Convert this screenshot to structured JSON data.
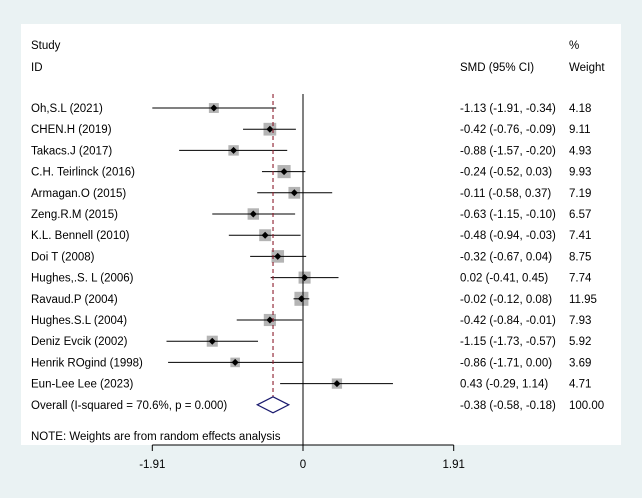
{
  "chart_data": {
    "type": "forest",
    "header": {
      "study_line1": "Study",
      "study_line2": "ID",
      "effect_label": "SMD (95% CI)",
      "weight_line1": "%",
      "weight_line2": "Weight"
    },
    "studies": [
      {
        "name": "Oh,S.L (2021)",
        "smd": -1.13,
        "lower": -1.91,
        "upper": -0.34,
        "ci_text": "-1.13 (-1.91, -0.34)",
        "weight": 4.18,
        "weight_text": "4.18"
      },
      {
        "name": "CHEN.H (2019)",
        "smd": -0.42,
        "lower": -0.76,
        "upper": -0.09,
        "ci_text": "-0.42 (-0.76, -0.09)",
        "weight": 9.11,
        "weight_text": "9.11"
      },
      {
        "name": "Takacs.J (2017)",
        "smd": -0.88,
        "lower": -1.57,
        "upper": -0.2,
        "ci_text": "-0.88 (-1.57, -0.20)",
        "weight": 4.93,
        "weight_text": "4.93"
      },
      {
        "name": "C.H. Teirlinck (2016)",
        "smd": -0.24,
        "lower": -0.52,
        "upper": 0.03,
        "ci_text": "-0.24 (-0.52, 0.03)",
        "weight": 9.93,
        "weight_text": "9.93"
      },
      {
        "name": "Armagan.O (2015)",
        "smd": -0.11,
        "lower": -0.58,
        "upper": 0.37,
        "ci_text": "-0.11 (-0.58, 0.37)",
        "weight": 7.19,
        "weight_text": "7.19"
      },
      {
        "name": "Zeng.R.M (2015)",
        "smd": -0.63,
        "lower": -1.15,
        "upper": -0.1,
        "ci_text": "-0.63 (-1.15, -0.10)",
        "weight": 6.57,
        "weight_text": "6.57"
      },
      {
        "name": "K.L. Bennell (2010)",
        "smd": -0.48,
        "lower": -0.94,
        "upper": -0.03,
        "ci_text": "-0.48 (-0.94, -0.03)",
        "weight": 7.41,
        "weight_text": "7.41"
      },
      {
        "name": "Doi T  (2008)",
        "smd": -0.32,
        "lower": -0.67,
        "upper": 0.04,
        "ci_text": "-0.32 (-0.67, 0.04)",
        "weight": 8.75,
        "weight_text": "8.75"
      },
      {
        "name": "Hughes,.S. L (2006)",
        "smd": 0.02,
        "lower": -0.41,
        "upper": 0.45,
        "ci_text": "0.02 (-0.41, 0.45)",
        "weight": 7.74,
        "weight_text": "7.74"
      },
      {
        "name": "Ravaud.P (2004)",
        "smd": -0.02,
        "lower": -0.12,
        "upper": 0.08,
        "ci_text": "-0.02 (-0.12, 0.08)",
        "weight": 11.95,
        "weight_text": "11.95"
      },
      {
        "name": "Hughes.S.L (2004)",
        "smd": -0.42,
        "lower": -0.84,
        "upper": -0.01,
        "ci_text": "-0.42 (-0.84, -0.01)",
        "weight": 7.93,
        "weight_text": "7.93"
      },
      {
        "name": "Deniz Evcik (2002)",
        "smd": -1.15,
        "lower": -1.73,
        "upper": -0.57,
        "ci_text": "-1.15 (-1.73, -0.57)",
        "weight": 5.92,
        "weight_text": "5.92"
      },
      {
        "name": "Henrik ROgind (1998)",
        "smd": -0.86,
        "lower": -1.71,
        "upper": 0.0,
        "ci_text": "-0.86 (-1.71, 0.00)",
        "weight": 3.69,
        "weight_text": "3.69"
      },
      {
        "name": "Eun-Lee Lee  (2023)",
        "smd": 0.43,
        "lower": -0.29,
        "upper": 1.14,
        "ci_text": "0.43 (-0.29, 1.14)",
        "weight": 4.71,
        "weight_text": "4.71"
      }
    ],
    "overall": {
      "label": "Overall  (I-squared = 70.6%, p = 0.000)",
      "smd": -0.38,
      "lower": -0.58,
      "upper": -0.18,
      "ci_text": "-0.38 (-0.58, -0.18)",
      "weight_text": "100.00"
    },
    "note": "NOTE: Weights are from random effects analysis",
    "x_ticks": [
      {
        "value": -1.91,
        "label": "-1.91"
      },
      {
        "value": 0,
        "label": "0"
      },
      {
        "value": 1.91,
        "label": "1.91"
      }
    ],
    "xlim": [
      -2.5,
      2.5
    ],
    "colors": {
      "background": "#eaf2f3",
      "panel": "#ffffff",
      "pooled_line": "#8b1c2c",
      "weight_box": "#b4b4b4",
      "overall_diamond": "#1a1a6e"
    }
  }
}
